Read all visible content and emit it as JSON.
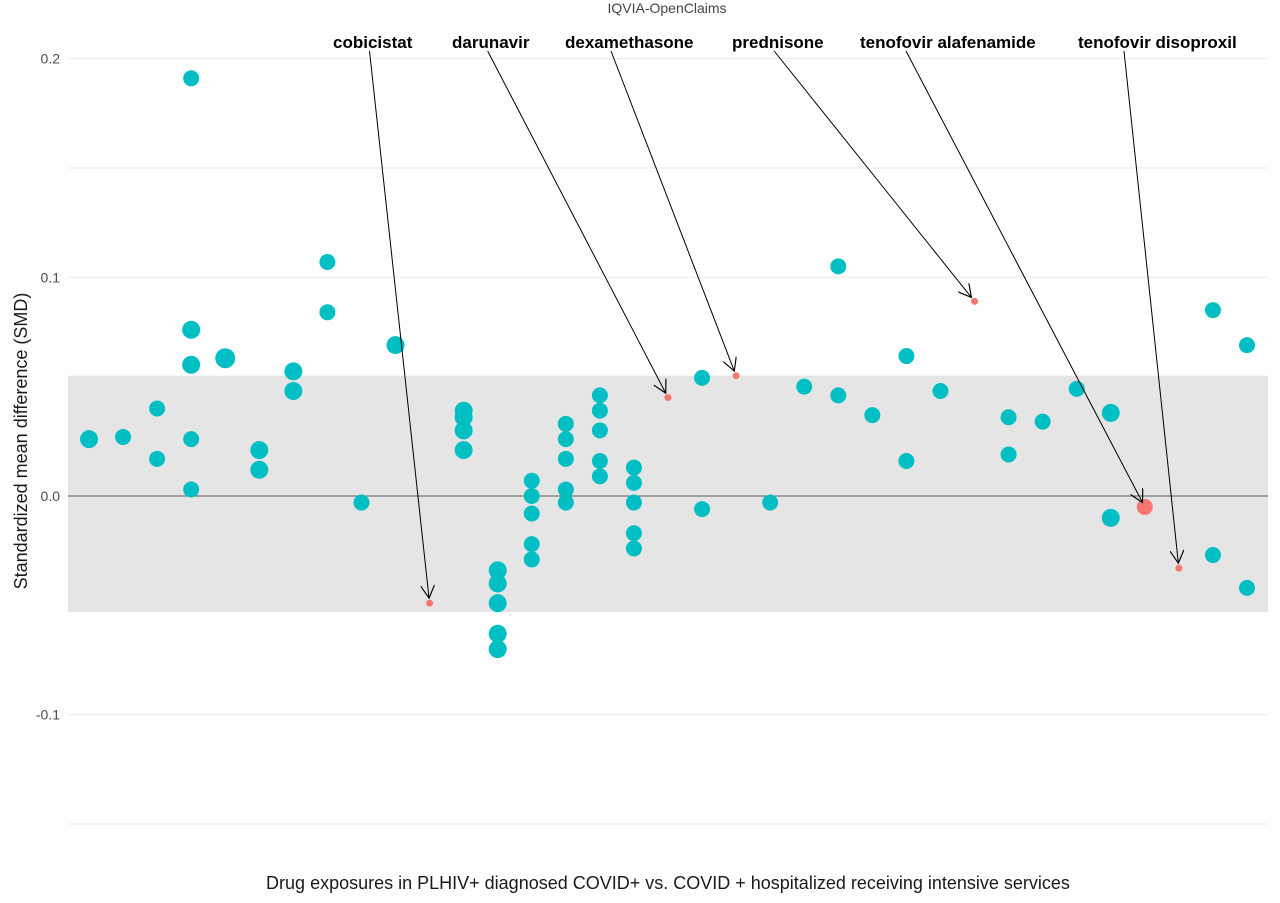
{
  "chart_data": {
    "type": "scatter",
    "subtitle": "IQVIA-OpenClaims",
    "xlabel": "Drug exposures in PLHIV+ diagnosed COVID+ vs. COVID + hospitalized receiving intensive services",
    "ylabel": "Standardized mean difference (SMD)",
    "ylim": [
      -0.15,
      0.2
    ],
    "yticks": [
      {
        "value": 0.2,
        "label": "0.2"
      },
      {
        "value": 0.1,
        "label": "0.1"
      },
      {
        "value": 0.0,
        "label": "0.0"
      },
      {
        "value": -0.1,
        "label": "-0.1"
      }
    ],
    "grid": true,
    "band": {
      "ymin": -0.053,
      "ymax": 0.055,
      "color": "#e5e5e5"
    },
    "reference_line": 0,
    "colors": {
      "normal": "#00bfc4",
      "highlight": "#f8766d"
    },
    "points": [
      {
        "x": 1,
        "y": 0.026,
        "size": 3,
        "highlight": false
      },
      {
        "x": 2,
        "y": 0.027,
        "size": 2,
        "highlight": false
      },
      {
        "x": 3,
        "y": 0.04,
        "size": 2,
        "highlight": false
      },
      {
        "x": 3,
        "y": 0.017,
        "size": 2,
        "highlight": false
      },
      {
        "x": 4,
        "y": 0.191,
        "size": 2,
        "highlight": false
      },
      {
        "x": 4,
        "y": 0.076,
        "size": 3,
        "highlight": false
      },
      {
        "x": 4,
        "y": 0.06,
        "size": 3,
        "highlight": false
      },
      {
        "x": 4,
        "y": 0.026,
        "size": 2,
        "highlight": false
      },
      {
        "x": 4,
        "y": 0.003,
        "size": 2,
        "highlight": false
      },
      {
        "x": 5,
        "y": 0.063,
        "size": 4,
        "highlight": false
      },
      {
        "x": 6,
        "y": 0.021,
        "size": 3,
        "highlight": false
      },
      {
        "x": 6,
        "y": 0.012,
        "size": 3,
        "highlight": false
      },
      {
        "x": 7,
        "y": 0.057,
        "size": 3,
        "highlight": false
      },
      {
        "x": 7,
        "y": 0.048,
        "size": 3,
        "highlight": false
      },
      {
        "x": 8,
        "y": 0.107,
        "size": 2,
        "highlight": false
      },
      {
        "x": 8,
        "y": 0.084,
        "size": 2,
        "highlight": false
      },
      {
        "x": 9,
        "y": -0.003,
        "size": 2,
        "highlight": false
      },
      {
        "x": 10,
        "y": 0.069,
        "size": 3,
        "highlight": false
      },
      {
        "x": 11,
        "y": -0.049,
        "size": 1,
        "highlight": true,
        "label": "cobicistat"
      },
      {
        "x": 12,
        "y": 0.039,
        "size": 3,
        "highlight": false
      },
      {
        "x": 12,
        "y": 0.036,
        "size": 3,
        "highlight": false
      },
      {
        "x": 12,
        "y": 0.03,
        "size": 3,
        "highlight": false
      },
      {
        "x": 12,
        "y": 0.021,
        "size": 3,
        "highlight": false
      },
      {
        "x": 13,
        "y": -0.034,
        "size": 3,
        "highlight": false
      },
      {
        "x": 13,
        "y": -0.04,
        "size": 3,
        "highlight": false
      },
      {
        "x": 13,
        "y": -0.049,
        "size": 3,
        "highlight": false
      },
      {
        "x": 13,
        "y": -0.063,
        "size": 3,
        "highlight": false
      },
      {
        "x": 13,
        "y": -0.07,
        "size": 3,
        "highlight": false
      },
      {
        "x": 14,
        "y": 0.007,
        "size": 2,
        "highlight": false
      },
      {
        "x": 14,
        "y": 0.0,
        "size": 2,
        "highlight": false
      },
      {
        "x": 14,
        "y": -0.008,
        "size": 2,
        "highlight": false
      },
      {
        "x": 14,
        "y": -0.022,
        "size": 2,
        "highlight": false
      },
      {
        "x": 14,
        "y": -0.029,
        "size": 2,
        "highlight": false
      },
      {
        "x": 15,
        "y": 0.033,
        "size": 2,
        "highlight": false
      },
      {
        "x": 15,
        "y": 0.026,
        "size": 2,
        "highlight": false
      },
      {
        "x": 15,
        "y": 0.017,
        "size": 2,
        "highlight": false
      },
      {
        "x": 15,
        "y": 0.003,
        "size": 2,
        "highlight": false
      },
      {
        "x": 15,
        "y": -0.003,
        "size": 2,
        "highlight": false
      },
      {
        "x": 16,
        "y": 0.046,
        "size": 2,
        "highlight": false
      },
      {
        "x": 16,
        "y": 0.039,
        "size": 2,
        "highlight": false
      },
      {
        "x": 16,
        "y": 0.03,
        "size": 2,
        "highlight": false
      },
      {
        "x": 16,
        "y": 0.016,
        "size": 2,
        "highlight": false
      },
      {
        "x": 16,
        "y": 0.009,
        "size": 2,
        "highlight": false
      },
      {
        "x": 17,
        "y": 0.013,
        "size": 2,
        "highlight": false
      },
      {
        "x": 17,
        "y": 0.006,
        "size": 2,
        "highlight": false
      },
      {
        "x": 17,
        "y": -0.003,
        "size": 2,
        "highlight": false
      },
      {
        "x": 17,
        "y": -0.017,
        "size": 2,
        "highlight": false
      },
      {
        "x": 17,
        "y": -0.024,
        "size": 2,
        "highlight": false
      },
      {
        "x": 18,
        "y": 0.045,
        "size": 1,
        "highlight": true,
        "label": "darunavir"
      },
      {
        "x": 19,
        "y": 0.054,
        "size": 2,
        "highlight": false
      },
      {
        "x": 19,
        "y": -0.006,
        "size": 2,
        "highlight": false
      },
      {
        "x": 20,
        "y": 0.055,
        "size": 1,
        "highlight": true,
        "label": "dexamethasone"
      },
      {
        "x": 21,
        "y": -0.003,
        "size": 2,
        "highlight": false
      },
      {
        "x": 22,
        "y": 0.05,
        "size": 2,
        "highlight": false
      },
      {
        "x": 23,
        "y": 0.105,
        "size": 2,
        "highlight": false
      },
      {
        "x": 23,
        "y": 0.046,
        "size": 2,
        "highlight": false
      },
      {
        "x": 24,
        "y": 0.037,
        "size": 2,
        "highlight": false
      },
      {
        "x": 25,
        "y": 0.064,
        "size": 2,
        "highlight": false
      },
      {
        "x": 25,
        "y": 0.016,
        "size": 2,
        "highlight": false
      },
      {
        "x": 26,
        "y": 0.048,
        "size": 2,
        "highlight": false
      },
      {
        "x": 27,
        "y": 0.089,
        "size": 1,
        "highlight": true,
        "label": "prednisone"
      },
      {
        "x": 28,
        "y": 0.036,
        "size": 2,
        "highlight": false
      },
      {
        "x": 28,
        "y": 0.019,
        "size": 2,
        "highlight": false
      },
      {
        "x": 29,
        "y": 0.034,
        "size": 2,
        "highlight": false
      },
      {
        "x": 30,
        "y": 0.049,
        "size": 2,
        "highlight": false
      },
      {
        "x": 31,
        "y": 0.038,
        "size": 3,
        "highlight": false
      },
      {
        "x": 31,
        "y": -0.01,
        "size": 3,
        "highlight": false
      },
      {
        "x": 32,
        "y": -0.005,
        "size": 2,
        "highlight": true,
        "label": "tenofovir alafenamide"
      },
      {
        "x": 33,
        "y": -0.033,
        "size": 1,
        "highlight": true,
        "label": "tenofovir disoproxil"
      },
      {
        "x": 34,
        "y": 0.085,
        "size": 2,
        "highlight": false
      },
      {
        "x": 34,
        "y": -0.027,
        "size": 2,
        "highlight": false
      },
      {
        "x": 35,
        "y": 0.069,
        "size": 2,
        "highlight": false
      },
      {
        "x": 35,
        "y": -0.042,
        "size": 2,
        "highlight": false
      }
    ],
    "annotations": [
      {
        "label": "cobicistat",
        "target_x": 11,
        "target_y": -0.049
      },
      {
        "label": "darunavir",
        "target_x": 18,
        "target_y": 0.045
      },
      {
        "label": "dexamethasone",
        "target_x": 20,
        "target_y": 0.055
      },
      {
        "label": "prednisone",
        "target_x": 27,
        "target_y": 0.089
      },
      {
        "label": "tenofovir alafenamide",
        "target_x": 32,
        "target_y": -0.005
      },
      {
        "label": "tenofovir disoproxil",
        "target_x": 33,
        "target_y": -0.033
      }
    ]
  }
}
